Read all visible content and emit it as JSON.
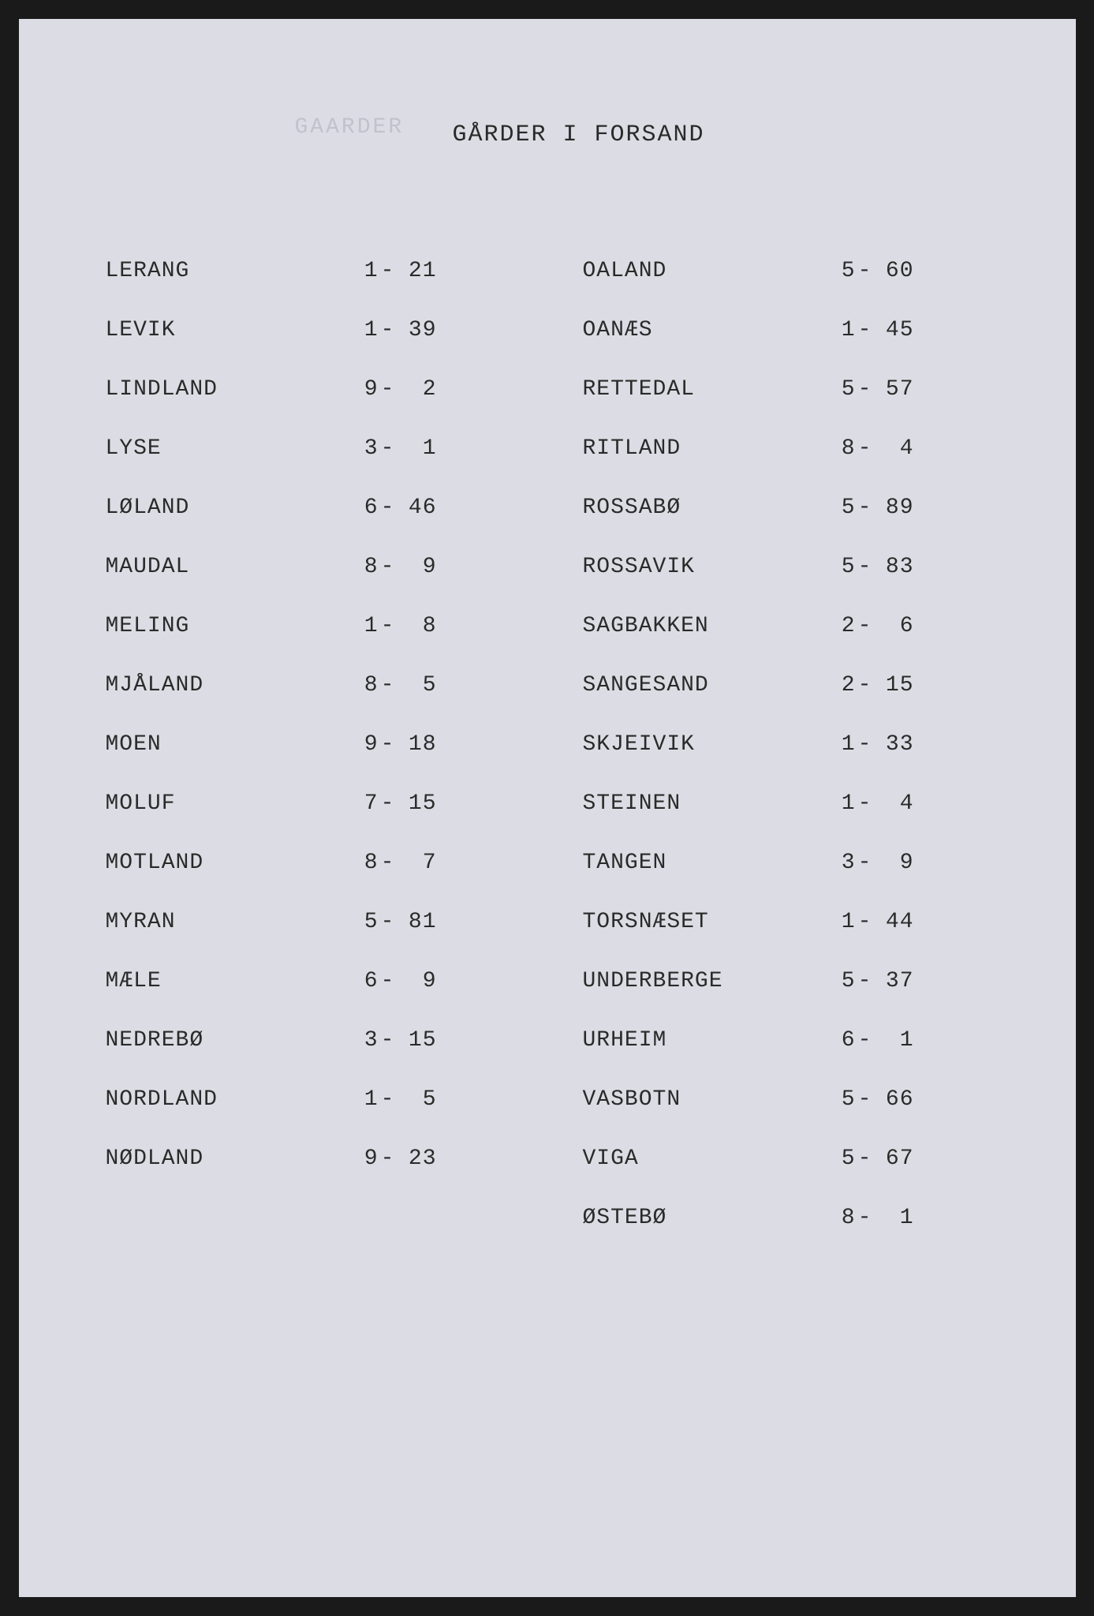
{
  "document": {
    "watermark": "GAARDER",
    "title": "GÅRDER I FORSAND",
    "background_color": "#dcdde4",
    "text_color": "#2a2a2a",
    "watermark_color": "#c0c2cc",
    "font_family": "Courier New",
    "title_fontsize": 30,
    "body_fontsize": 28,
    "left_column": [
      {
        "name": "LERANG",
        "n1": "1",
        "n2": "21"
      },
      {
        "name": "LEVIK",
        "n1": "1",
        "n2": "39"
      },
      {
        "name": "LINDLAND",
        "n1": "9",
        "n2": "2"
      },
      {
        "name": "LYSE",
        "n1": "3",
        "n2": "1"
      },
      {
        "name": "LØLAND",
        "n1": "6",
        "n2": "46"
      },
      {
        "name": "MAUDAL",
        "n1": "8",
        "n2": "9"
      },
      {
        "name": "MELING",
        "n1": "1",
        "n2": "8"
      },
      {
        "name": "MJÅLAND",
        "n1": "8",
        "n2": "5"
      },
      {
        "name": "MOEN",
        "n1": "9",
        "n2": "18"
      },
      {
        "name": "MOLUF",
        "n1": "7",
        "n2": "15"
      },
      {
        "name": "MOTLAND",
        "n1": "8",
        "n2": "7"
      },
      {
        "name": "MYRAN",
        "n1": "5",
        "n2": "81"
      },
      {
        "name": "MÆLE",
        "n1": "6",
        "n2": "9"
      },
      {
        "name": "NEDREBØ",
        "n1": "3",
        "n2": "15"
      },
      {
        "name": "NORDLAND",
        "n1": "1",
        "n2": "5"
      },
      {
        "name": "NØDLAND",
        "n1": "9",
        "n2": "23"
      }
    ],
    "right_column": [
      {
        "name": "OALAND",
        "n1": "5",
        "n2": "60"
      },
      {
        "name": "OANÆS",
        "n1": "1",
        "n2": "45"
      },
      {
        "name": "RETTEDAL",
        "n1": "5",
        "n2": "57"
      },
      {
        "name": "RITLAND",
        "n1": "8",
        "n2": "4"
      },
      {
        "name": "ROSSABØ",
        "n1": "5",
        "n2": "89"
      },
      {
        "name": "ROSSAVIK",
        "n1": "5",
        "n2": "83"
      },
      {
        "name": "SAGBAKKEN",
        "n1": "2",
        "n2": "6"
      },
      {
        "name": "SANGESAND",
        "n1": "2",
        "n2": "15"
      },
      {
        "name": "SKJEIVIK",
        "n1": "1",
        "n2": "33"
      },
      {
        "name": "STEINEN",
        "n1": "1",
        "n2": "4"
      },
      {
        "name": "TANGEN",
        "n1": "3",
        "n2": "9"
      },
      {
        "name": "TORSNÆSET",
        "n1": "1",
        "n2": "44"
      },
      {
        "name": "UNDERBERGE",
        "n1": "5",
        "n2": "37"
      },
      {
        "name": "URHEIM",
        "n1": "6",
        "n2": "1"
      },
      {
        "name": "VASBOTN",
        "n1": "5",
        "n2": "66"
      },
      {
        "name": "VIGA",
        "n1": "5",
        "n2": "67"
      },
      {
        "name": "ØSTEBØ",
        "n1": "8",
        "n2": "1"
      }
    ]
  }
}
